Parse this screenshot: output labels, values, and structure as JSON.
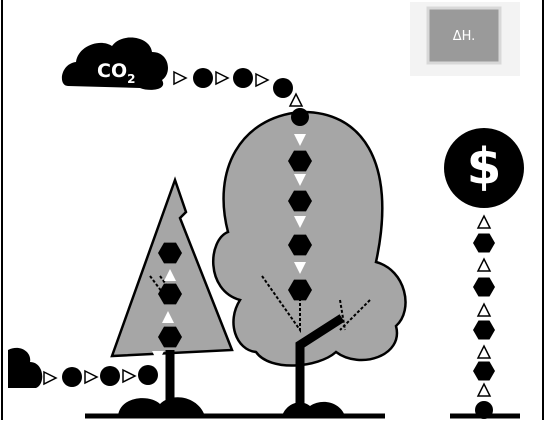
{
  "cloud_label": {
    "text": "CO",
    "subscript": "2"
  },
  "badge": "ΔH.",
  "currency_symbol": "$"
}
